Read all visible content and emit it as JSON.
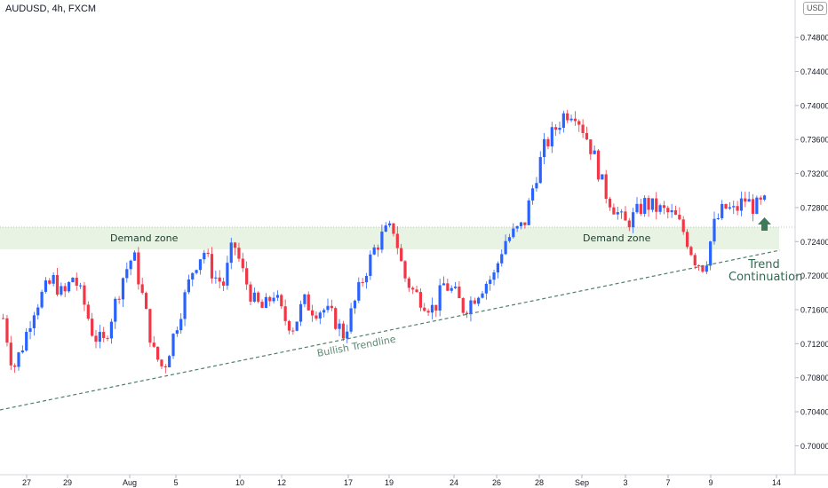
{
  "header": {
    "symbol": "AUDUSD, 4h, FXCM",
    "currency": "USD"
  },
  "annotations": {
    "demand_zone_left": "Demand zone",
    "demand_zone_right": "Demand zone",
    "trendline": "Bullish Trendline",
    "continuation_line1": "Trend",
    "continuation_line2": "Continuation"
  },
  "colors": {
    "up": "#2962ff",
    "down": "#f23645",
    "zone": "#e8f3e3",
    "trendline": "#4f7f6a",
    "arrow": "#3d7a5a"
  },
  "chart_data": {
    "type": "candlestick",
    "title": "AUDUSD, 4h, FXCM",
    "currency": "USD",
    "x_ticks": [
      "27",
      "29",
      "Aug",
      "5",
      "10",
      "12",
      "17",
      "19",
      "24",
      "26",
      "28",
      "Sep",
      "3",
      "7",
      "9",
      "14"
    ],
    "y_ticks": [
      "0.70000",
      "0.70400",
      "0.70800",
      "0.71200",
      "0.71600",
      "0.72000",
      "0.72400",
      "0.72800",
      "0.73200",
      "0.73600",
      "0.74000",
      "0.74400",
      "0.74800"
    ],
    "ylim": [
      0.6966,
      0.7524
    ],
    "grid": false,
    "demand_zone": {
      "low": 0.7231,
      "high": 0.7257
    },
    "bullish_trendline": {
      "start_close": 0.7045,
      "end_close": 0.7228
    },
    "close_path": [
      0.715,
      0.709,
      0.712,
      0.716,
      0.718,
      0.7195,
      0.7175,
      0.72,
      0.717,
      0.713,
      0.712,
      0.716,
      0.72,
      0.7225,
      0.717,
      0.711,
      0.709,
      0.713,
      0.717,
      0.721,
      0.723,
      0.72,
      0.719,
      0.724,
      0.72,
      0.717,
      0.716,
      0.718,
      0.715,
      0.714,
      0.717,
      0.716,
      0.716,
      0.715,
      0.713,
      0.7165,
      0.72,
      0.723,
      0.725,
      0.7255,
      0.72,
      0.718,
      0.717,
      0.716,
      0.719,
      0.718,
      0.716,
      0.7175,
      0.719,
      0.72,
      0.724,
      0.725,
      0.726,
      0.731,
      0.735,
      0.737,
      0.739,
      0.7395,
      0.737,
      0.734,
      0.73,
      0.728,
      0.726,
      0.727,
      0.7285,
      0.728,
      0.7275,
      0.727,
      0.725,
      0.722,
      0.721,
      0.726,
      0.728,
      0.7275,
      0.729,
      0.728,
      0.7285
    ]
  }
}
